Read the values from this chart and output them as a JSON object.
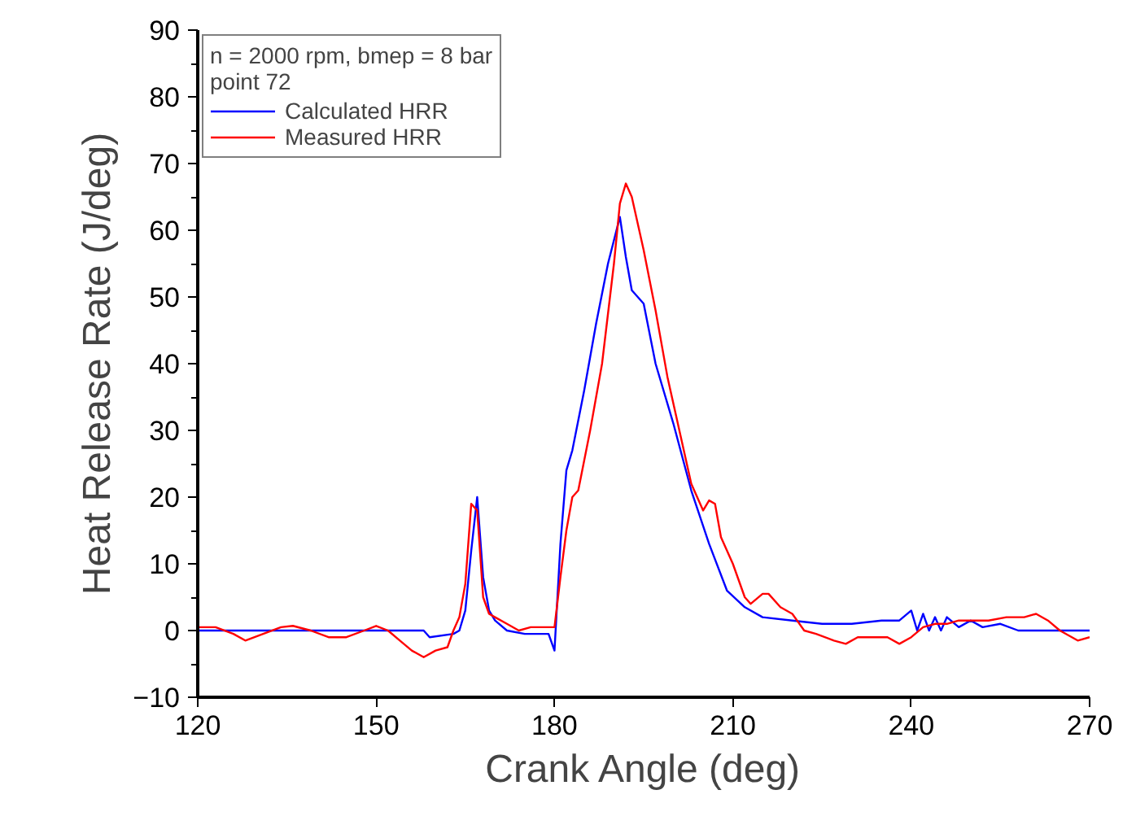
{
  "chart_data": {
    "type": "line",
    "xlabel": "Crank Angle (deg)",
    "ylabel": "Heat Release Rate (J/deg)",
    "legend_title": "n = 2000 rpm, bmep = 8 bar\npoint 72",
    "xlim": [
      120,
      270
    ],
    "xticks": [
      120,
      150,
      180,
      210,
      240,
      270
    ],
    "ylim": [
      -10,
      90
    ],
    "yticks": [
      -10,
      0,
      10,
      20,
      30,
      40,
      50,
      60,
      70,
      80,
      90
    ],
    "grid": false,
    "legend": "top left",
    "line_style": "solid",
    "marker": "none",
    "series": [
      {
        "name": "Calculated HRR",
        "color": "#0000ff",
        "x": [
          120,
          158,
          159,
          163,
          164,
          165,
          166,
          167,
          168,
          169,
          170,
          172,
          175,
          179,
          180,
          181,
          182,
          183,
          185,
          187,
          189,
          191,
          192,
          193,
          195,
          197,
          200,
          203,
          206,
          209,
          212,
          215,
          220,
          225,
          230,
          235,
          238,
          240,
          241,
          242,
          243,
          244,
          245,
          246,
          248,
          250,
          252,
          255,
          258,
          265,
          270
        ],
        "values": [
          0,
          0,
          -1,
          -0.5,
          0,
          3,
          12,
          20,
          8,
          3,
          1.5,
          0,
          -0.5,
          -0.5,
          -3,
          13,
          24,
          27,
          36,
          46,
          55,
          62,
          56,
          51,
          49,
          40,
          31,
          21,
          13,
          6,
          3.5,
          2,
          1.5,
          1,
          1,
          1.5,
          1.5,
          3,
          0,
          2.5,
          0,
          2,
          0,
          2,
          0.5,
          1.5,
          0.5,
          1,
          0,
          0,
          0
        ]
      },
      {
        "name": "Measured HRR",
        "color": "#ff0000",
        "x": [
          120,
          123,
          126,
          128,
          131,
          134,
          136,
          139,
          142,
          145,
          148,
          150,
          152,
          154,
          156,
          158,
          160,
          162,
          163,
          164,
          165,
          166,
          167,
          168,
          169,
          170,
          172,
          174,
          176,
          179,
          180,
          181,
          182,
          183,
          184,
          186,
          188,
          190,
          191,
          192,
          193,
          195,
          197,
          199,
          201,
          203,
          205,
          206,
          207,
          208,
          210,
          212,
          213,
          215,
          216,
          218,
          220,
          222,
          224,
          227,
          229,
          231,
          233,
          236,
          238,
          240,
          242,
          244,
          246,
          248,
          250,
          253,
          256,
          259,
          261,
          263,
          265,
          268,
          270
        ],
        "values": [
          0.5,
          0.5,
          -0.5,
          -1.5,
          -0.5,
          0.5,
          0.7,
          0,
          -1,
          -1,
          0,
          0.7,
          0,
          -1.5,
          -3,
          -4,
          -3,
          -2.5,
          0,
          2,
          7,
          19,
          18,
          5,
          2.5,
          2,
          1,
          0,
          0.5,
          0.5,
          0.5,
          8,
          15,
          20,
          21,
          30,
          40,
          55,
          64,
          67,
          65,
          57,
          48,
          38,
          30,
          22,
          18,
          19.5,
          19,
          14,
          10,
          5,
          4,
          5.5,
          5.5,
          3.5,
          2.5,
          0,
          -0.5,
          -1.5,
          -2,
          -1,
          -1,
          -1,
          -2,
          -1,
          0.5,
          1,
          1,
          1.5,
          1.5,
          1.5,
          2,
          2,
          2.5,
          1.5,
          0,
          -1.5,
          -1
        ]
      }
    ]
  }
}
